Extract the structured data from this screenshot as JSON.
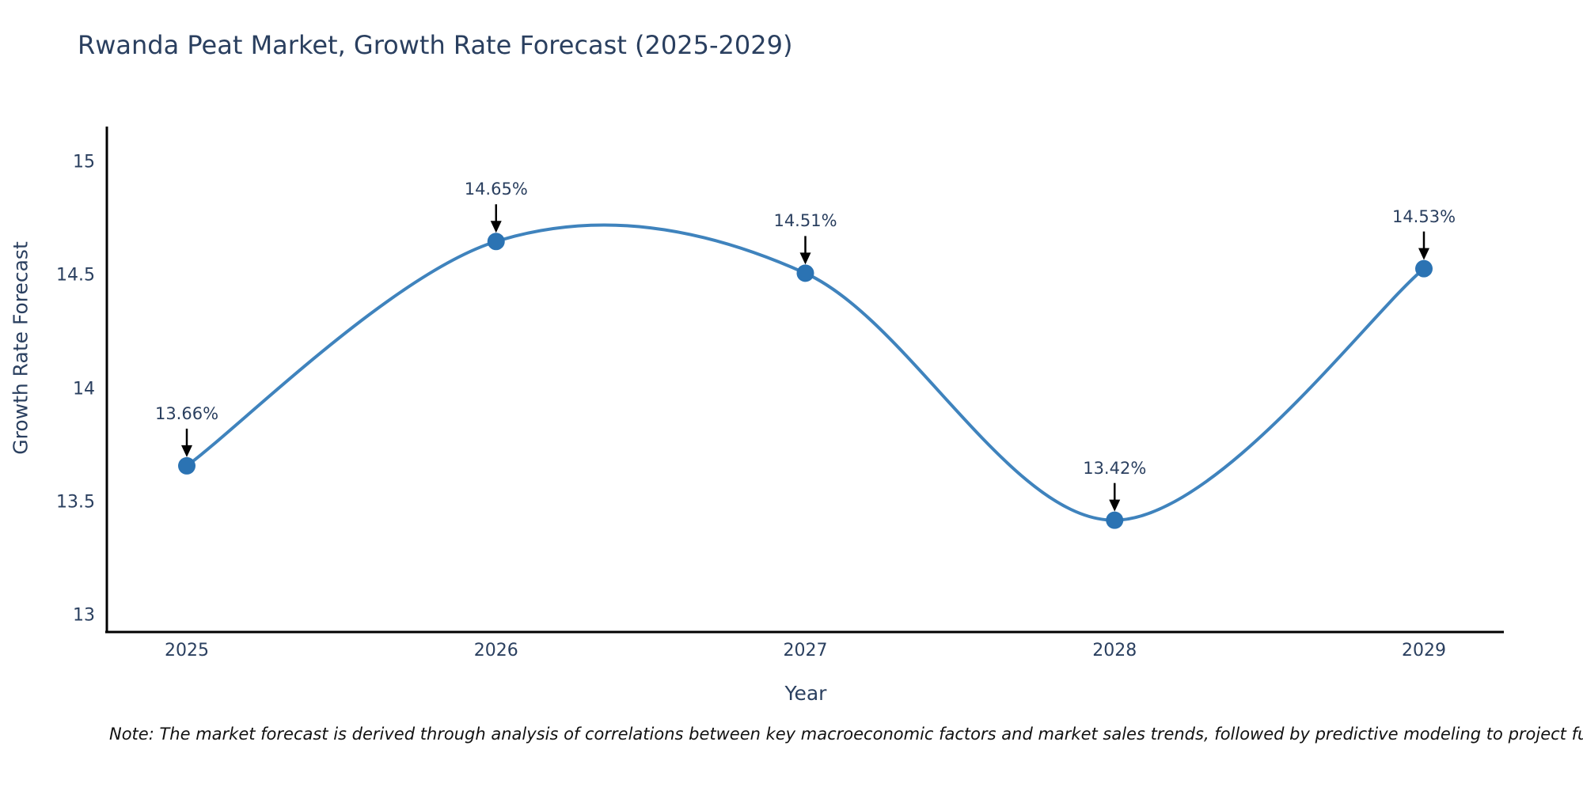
{
  "figure": {
    "title": "Rwanda Peat Market, Growth Rate Forecast (2025-2029)",
    "note": "Note: The market forecast is derived through analysis of correlations between key macroeconomic factors and market sales trends, followed by predictive modeling to project future sal"
  },
  "chart_data": {
    "type": "line",
    "title": "Rwanda Peat Market, Growth Rate Forecast (2025-2029)",
    "x": [
      2025,
      2026,
      2027,
      2028,
      2029
    ],
    "series": [
      {
        "name": "Growth Rate Forecast",
        "values": [
          13.66,
          14.65,
          14.51,
          13.42,
          14.53
        ]
      }
    ],
    "point_labels": [
      "13.66%",
      "14.65%",
      "14.51%",
      "13.42%",
      "14.53%"
    ],
    "xlabel": "Year",
    "ylabel": "Growth Rate Forecast",
    "xtick_labels": [
      "2025",
      "2026",
      "2027",
      "2028",
      "2029"
    ],
    "ytick_labels": [
      "13",
      "13.5",
      "14",
      "14.5",
      "15"
    ],
    "yticks": [
      13,
      13.5,
      14,
      14.5,
      15
    ],
    "ylim": [
      12.93,
      15.16
    ],
    "line_shape": "spline",
    "grid": false,
    "legend": false,
    "annotation_arrows": true,
    "colors": {
      "line": "#3f83bd",
      "marker": "#2b73b3",
      "arrow": "#000000",
      "axis": "#000000",
      "text": "#2a3f5f"
    }
  }
}
